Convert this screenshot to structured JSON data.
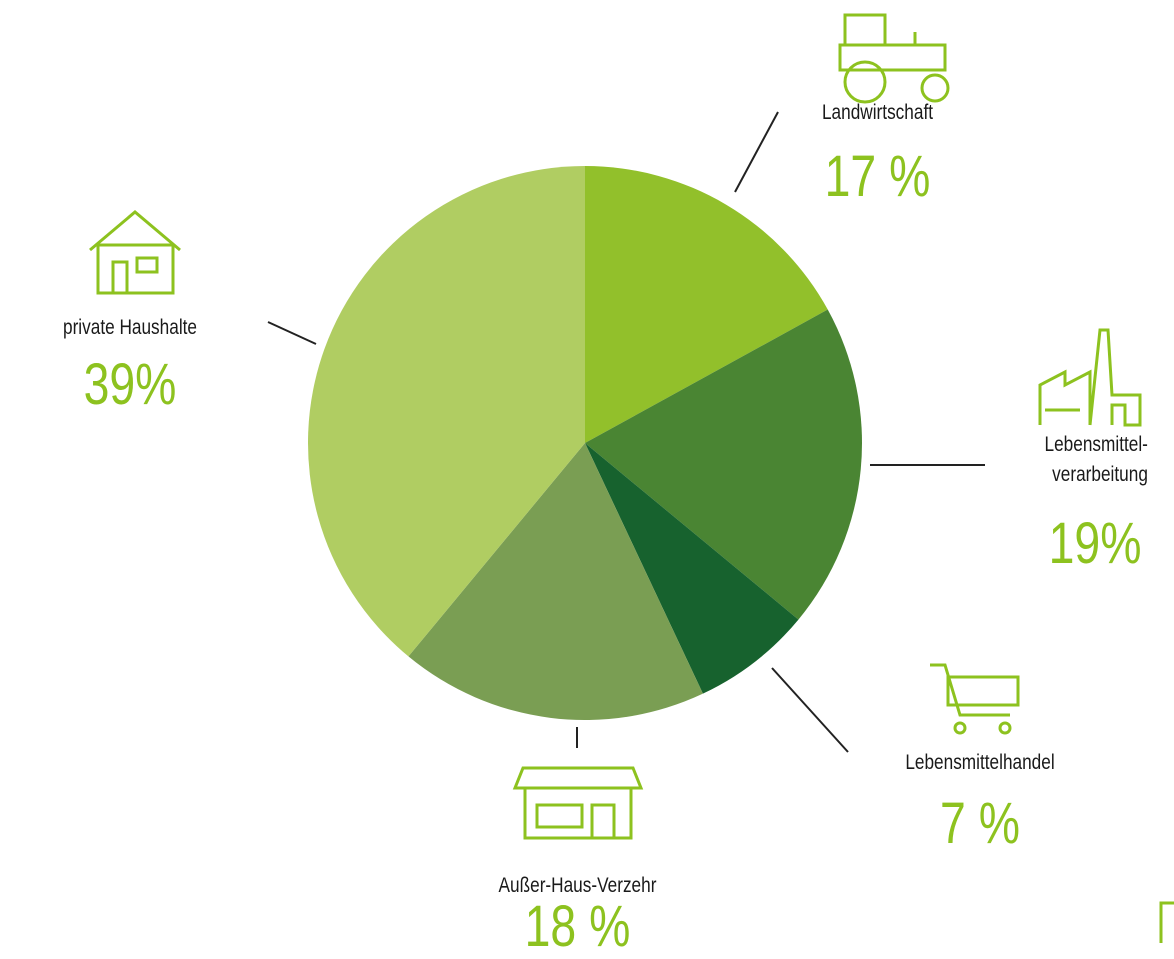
{
  "chart_data": {
    "type": "pie",
    "categories": [
      "Landwirtschaft",
      "Lebensmittel-\nverarbeitung",
      "Lebensmittelhandel",
      "Außer-Haus-Verzehr",
      "private Haushalte"
    ],
    "values": [
      17,
      19,
      7,
      18,
      39
    ],
    "value_labels": [
      "17 %",
      "19%",
      "7 %",
      "18 %",
      "39%"
    ],
    "colors": [
      "#92c02b",
      "#4a8533",
      "#17622e",
      "#7a9e53",
      "#b0cd62"
    ]
  }
}
